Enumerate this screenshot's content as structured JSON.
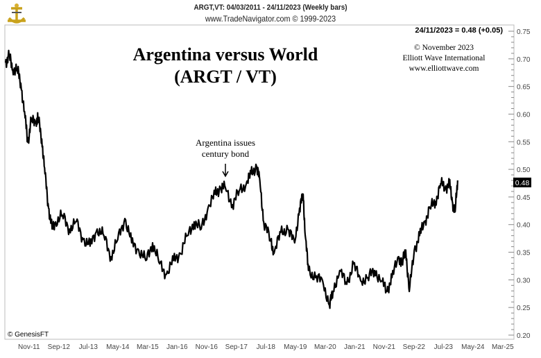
{
  "header": {
    "line1": "ARGT,VT:  04/03/2011 - 24/11/2023  (Weekly bars)",
    "line2": "www.TradeNavigator.com © 1999-2023"
  },
  "last_value_label": "24/11/2023 = 0.48 (+0.05)",
  "current_value_badge": "0.48",
  "credits": [
    "© November 2023",
    "Elliott Wave International",
    "www.elliottwave.com"
  ],
  "watermark": "© GenesisFT",
  "colors": {
    "line": "#000000",
    "axis": "#888888",
    "badge_bg": "#000000",
    "badge_fg": "#ffffff"
  },
  "chart_data": {
    "type": "line",
    "title": "Argentina versus World",
    "subtitle": "(ARGT / VT)",
    "annotation": {
      "text": [
        "Argentina issues",
        "century bond"
      ],
      "x": 2017.36,
      "y": 0.49
    },
    "ylim": [
      0.2,
      0.75
    ],
    "yticks": [
      "0.20",
      "0.25",
      "0.30",
      "0.35",
      "0.40",
      "0.45",
      "0.50",
      "0.55",
      "0.60",
      "0.65",
      "0.70",
      "0.75"
    ],
    "xlim": [
      2011.17,
      2025.3
    ],
    "xticks": [
      {
        "label": "Nov-11",
        "x": 2011.83
      },
      {
        "label": "Sep-12",
        "x": 2012.67
      },
      {
        "label": "Jul-13",
        "x": 2013.5
      },
      {
        "label": "May-14",
        "x": 2014.33
      },
      {
        "label": "Mar-15",
        "x": 2015.17
      },
      {
        "label": "Jan-16",
        "x": 2016.0
      },
      {
        "label": "Nov-16",
        "x": 2016.83
      },
      {
        "label": "Sep-17",
        "x": 2017.67
      },
      {
        "label": "Jul-18",
        "x": 2018.5
      },
      {
        "label": "May-19",
        "x": 2019.33
      },
      {
        "label": "Mar-20",
        "x": 2020.17
      },
      {
        "label": "Jan-21",
        "x": 2021.0
      },
      {
        "label": "Nov-21",
        "x": 2021.83
      },
      {
        "label": "Sep-22",
        "x": 2022.67
      },
      {
        "label": "Jul-23",
        "x": 2023.5
      },
      {
        "label": "May-24",
        "x": 2024.33
      },
      {
        "label": "Mar-25",
        "x": 2025.17
      }
    ],
    "series": [
      {
        "name": "ARGT/VT",
        "x": [
          2011.17,
          2011.27,
          2011.37,
          2011.5,
          2011.6,
          2011.72,
          2011.8,
          2011.89,
          2012.03,
          2012.09,
          2012.19,
          2012.28,
          2012.38,
          2012.48,
          2012.58,
          2012.77,
          2012.97,
          2013.16,
          2013.36,
          2013.55,
          2013.75,
          2013.94,
          2014.14,
          2014.33,
          2014.53,
          2014.72,
          2014.92,
          2015.12,
          2015.31,
          2015.51,
          2015.7,
          2015.9,
          2016.09,
          2016.29,
          2016.48,
          2016.68,
          2016.87,
          2017.07,
          2017.22,
          2017.36,
          2017.56,
          2017.75,
          2017.95,
          2018.08,
          2018.24,
          2018.33,
          2018.44,
          2018.63,
          2018.73,
          2018.92,
          2019.12,
          2019.31,
          2019.45,
          2019.55,
          2019.61,
          2019.7,
          2019.9,
          2020.1,
          2020.29,
          2020.39,
          2020.58,
          2020.78,
          2020.97,
          2021.17,
          2021.37,
          2021.56,
          2021.76,
          2021.91,
          2022.05,
          2022.24,
          2022.34,
          2022.44,
          2022.54,
          2022.68,
          2022.83,
          2022.97,
          2023.12,
          2023.28,
          2023.42,
          2023.55,
          2023.67,
          2023.75,
          2023.83,
          2023.9
        ],
        "y": [
          0.693,
          0.706,
          0.681,
          0.681,
          0.656,
          0.593,
          0.549,
          0.587,
          0.587,
          0.593,
          0.555,
          0.492,
          0.43,
          0.392,
          0.405,
          0.417,
          0.392,
          0.405,
          0.373,
          0.361,
          0.392,
          0.38,
          0.342,
          0.373,
          0.411,
          0.367,
          0.354,
          0.335,
          0.367,
          0.329,
          0.31,
          0.335,
          0.348,
          0.38,
          0.405,
          0.392,
          0.43,
          0.455,
          0.467,
          0.467,
          0.436,
          0.461,
          0.474,
          0.492,
          0.505,
          0.48,
          0.405,
          0.373,
          0.348,
          0.386,
          0.392,
          0.367,
          0.43,
          0.455,
          0.38,
          0.317,
          0.304,
          0.298,
          0.254,
          0.279,
          0.317,
          0.292,
          0.329,
          0.298,
          0.304,
          0.317,
          0.298,
          0.279,
          0.304,
          0.342,
          0.329,
          0.354,
          0.279,
          0.354,
          0.38,
          0.405,
          0.43,
          0.442,
          0.474,
          0.467,
          0.474,
          0.442,
          0.423,
          0.48
        ]
      }
    ]
  }
}
